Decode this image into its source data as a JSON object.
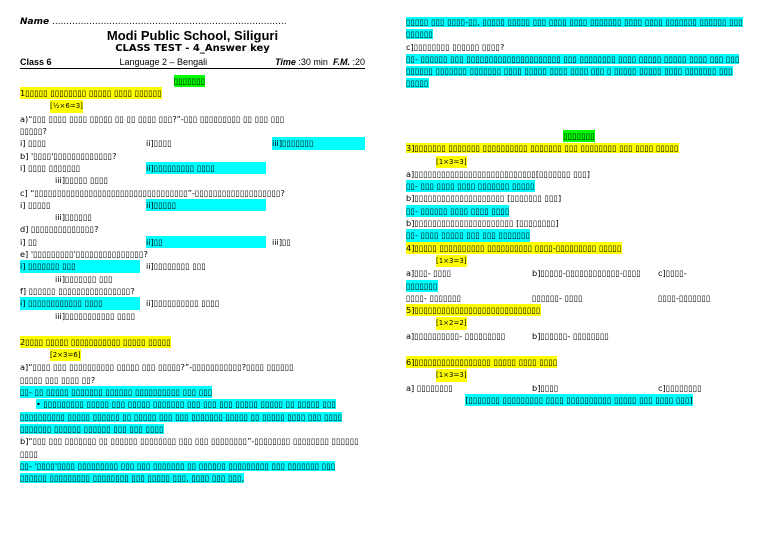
{
  "header": {
    "name_label": "Name",
    "name_dots": "..................................................................................",
    "school": "Modi Public School, Siliguri",
    "test": "CLASS TEST - 4_Answer key",
    "class": "Class 6",
    "subject": "Language 2 – Bengali",
    "time_label": "Time",
    "time": ":30 min",
    "fm_label": "F.M.",
    "fm": ":20"
  },
  "left": [
    [
      {
        "text": "▯▯▯▯▯▯▯",
        "bg": "#00ff00",
        "center": true
      }
    ],
    [
      {
        "text": "1▯▯▯▯▯ ▯▯▯▯▯▯▯▯ ▯▯▯▯▯ ▯▯▯▯ ▯▯▯▯▯▯",
        "bg": "#ffff00"
      }
    ],
    [
      {
        "text": "[½×6=3]",
        "bg": "#ffff00",
        "small": true
      }
    ],
    [
      {
        "text": "a)“▯▯▯ ▯▯▯▯ ▯▯▯▯ ▯▯▯▯▯ ▯▯ ▯▯ ▯▯▯▯ ▯▯▯?”-▯▯▯ ▯▯▯▯▯▯▯▯▯ ▯▯ ▯▯▯ ▯▯▯"
      }
    ],
    [
      {
        "text": "▯▯▯▯▯?"
      }
    ],
    [
      {
        "text": "i] ▯▯▯▯"
      },
      {
        "text": "ii]▯▯▯▯"
      },
      {
        "text": "iii]▯▯▯▯▯▯▯",
        "bg": "#00ffff"
      }
    ],
    [
      {
        "text": "b] '▯▯▯▯'▯▯▯▯▯▯▯▯▯▯▯▯▯?"
      }
    ],
    [
      {
        "text": "i] ▯▯▯▯ ▯▯▯▯▯▯▯"
      },
      {
        "text": "ii]▯▯▯▯▯▯▯▯▯ ▯▯▯▯",
        "bg": "#00ffff"
      }
    ],
    [
      {
        "text": "iii]▯▯▯▯▯ ▯▯▯▯",
        "indent": true
      }
    ],
    [
      {
        "text": "c] “▯▯▯▯▯▯▯▯▯▯▯▯▯▯▯▯▯▯▯▯▯▯▯▯▯▯▯▯▯▯▯▯▯▯”-▯▯▯▯▯▯▯▯▯▯▯▯▯▯▯▯▯▯▯?"
      }
    ],
    [
      {
        "text": "i] ▯▯▯▯▯"
      },
      {
        "text": "ii]▯▯▯▯▯",
        "bg": "#00ffff"
      }
    ],
    [
      {
        "text": "iii]▯▯▯▯▯▯",
        "indent": true
      }
    ],
    [
      {
        "text": "d] ▯▯▯▯▯▯▯▯▯▯▯▯▯▯?"
      }
    ],
    [
      {
        "text": "i] ▯▯"
      },
      {
        "text": "ii]▯▯",
        "bg": "#00ffff"
      },
      {
        "text": "iii]▯▯"
      }
    ],
    [
      {
        "text": "e] '▯▯▯▯▯▯▯▯▯'▯▯▯▯▯▯▯▯▯▯▯▯▯▯▯?"
      }
    ],
    [
      {
        "text": "i] ▯▯▯▯▯▯▯ ▯▯▯",
        "bg": "#00ffff"
      },
      {
        "text": "ii]▯▯▯▯▯▯▯▯ ▯▯▯"
      }
    ],
    [
      {
        "text": "iii]▯▯▯▯▯▯▯ ▯▯▯",
        "indent": true
      }
    ],
    [
      {
        "text": "f] ▯▯▯▯▯▯ ▯▯▯▯▯▯▯▯▯▯▯▯▯▯▯▯?"
      }
    ],
    [
      {
        "text": "i] ▯▯▯▯▯▯▯▯▯▯▯▯ ▯▯▯▯",
        "bg": "#00ffff"
      },
      {
        "text": "ii]▯▯▯▯▯▯▯▯▯▯ ▯▯▯▯"
      }
    ],
    [
      {
        "text": "iii]▯▯▯▯▯▯▯▯▯▯▯ ▯▯▯▯",
        "indent": true
      }
    ],
    [
      {
        "text": "2▯▯▯▯ ▯▯▯▯▯ ▯▯▯▯▯▯▯▯▯▯▯ ▯▯▯▯▯ ▯▯▯▯▯",
        "bg": "#ffff00",
        "gap": true
      }
    ],
    [
      {
        "text": "[2×3=6]",
        "bg": "#ffff00",
        "small": true
      }
    ],
    [
      {
        "text": "a]“▯▯▯▯ ▯▯▯ ▯▯▯▯▯▯▯▯▯▯ ▯▯▯▯▯ ▯▯▯ ▯▯▯▯▯?”-▯▯▯▯▯▯▯▯▯▯▯?▯▯▯▯ ▯▯▯▯▯▯"
      }
    ],
    [
      {
        "text": "▯▯▯▯▯ ▯▯▯ ▯▯▯▯ ▯▯?"
      }
    ],
    [
      {
        "text": "▯▯- ▯▯ ▯▯▯▯▯ ▯▯▯▯▯▯▯ ▯▯▯▯▯▯ ▯▯▯▯▯▯▯▯▯▯ ▯▯▯ ▯▯▯",
        "bg": "#00ffff"
      }
    ],
    [
      {
        "text": "• ▯▯▯▯▯▯▯▯▯ ▯▯▯▯▯ ▯▯▯ ▯▯▯▯▯ ▯▯▯▯▯▯▯ ▯▯▯ ▯▯▯ ▯▯▯ ▯▯▯▯▯ ▯▯▯▯▯ ▯▯ ▯▯▯▯▯ ▯▯▯ ▯▯▯▯▯▯▯▯▯▯ ▯▯▯▯▯ ▯▯▯▯▯▯ ▯▯ ▯▯▯▯▯ ▯▯▯ ▯▯▯ ▯▯▯▯▯▯▯ ▯▯▯▯▯ ▯▯ ▯▯▯▯▯ ▯▯▯▯ ▯▯▯ ▯▯▯▯ ▯▯▯▯▯▯▯ ▯▯▯▯▯▯ ▯▯▯▯▯▯ ▯▯▯ ▯▯▯ ▯▯▯▯",
        "bg": "#00ffff",
        "bullet": true
      }
    ],
    [
      {
        "text": "b]“▯▯▯ ▯▯▯ ▯▯▯▯▯▯▯ ▯▯ ▯▯▯▯▯▯ ▯▯▯▯▯▯▯▯ ▯▯▯ ▯▯▯ ▯▯▯▯▯▯▯▯”-▯▯▯▯▯▯▯▯ ▯▯▯▯▯▯▯▯ ▯▯▯▯▯▯ ▯▯▯▯"
      }
    ],
    [
      {
        "text": "▯▯- '▯▯▯▯'▯▯▯▯ ▯▯▯▯▯▯▯▯▯ ▯▯▯ ▯▯▯ ▯▯▯▯▯▯▯ ▯▯ ▯▯▯▯▯▯ ▯▯▯▯▯▯▯▯▯ ▯▯▯ ▯▯▯▯▯▯▯ ▯▯▯ ▯▯▯▯▯▯ ▯▯▯▯▯▯▯▯▯ ▯▯▯▯▯▯▯▯ ▯▯▯ ▯▯▯▯▯ ▯▯▯, ▯▯▯▯ ▯▯▯ ▯▯▯,",
        "bg": "#00ffff"
      }
    ]
  ],
  "right_top": [
    [
      {
        "text": "▯▯▯▯▯ ▯▯▯ ▯▯▯▯-▯▯, ▯▯▯▯▯ ▯▯▯▯▯ ▯▯▯ ▯▯▯▯ ▯▯▯▯ ▯▯▯▯▯▯▯ ▯▯▯▯ ▯▯▯▯ ▯▯▯▯▯▯▯ ▯▯▯▯▯▯ ▯▯▯ ▯▯▯▯▯▯",
        "bg": "#00ffff"
      }
    ],
    [
      {
        "text": "c]▯▯▯▯▯▯▯▯ ▯▯▯▯▯▯ ▯▯▯▯?"
      }
    ],
    [
      {
        "text": "▯▯- ▯▯▯▯▯▯ ▯▯▯ ▯▯▯▯▯▯▯▯▯▯▯▯▯▯▯▯▯▯▯▯▯ ▯▯▯ ▯▯▯▯▯▯▯▯ ▯▯▯▯ ▯▯▯▯▯ ▯▯▯▯▯ ▯▯▯▯ ▯▯▯ ▯▯▯ ▯▯▯▯▯▯ ▯▯▯▯▯▯▯ ▯▯▯▯▯▯▯ ▯▯▯▯ ▯▯▯▯▯ ▯▯▯▯ ▯▯▯▯ ▯▯▯ ▯ ▯▯▯▯▯ ▯▯▯▯▯ ▯▯▯▯ ▯▯▯▯▯▯▯ ▯▯▯ ▯▯▯▯▯",
        "bg": "#00ffff"
      }
    ]
  ],
  "right_bottom": [
    [
      {
        "text": "▯▯▯▯▯▯▯",
        "bg": "#00ff00",
        "center": true
      }
    ],
    [
      {
        "text": "3]▯▯▯▯▯▯▯ ▯▯▯▯▯▯▯ ▯▯▯▯▯▯▯▯▯▯ ▯▯▯▯▯▯▯ ▯▯▯ ▯▯▯▯▯▯▯▯ ▯▯▯ ▯▯▯▯ ▯▯▯▯▯",
        "bg": "#ffff00"
      }
    ],
    [
      {
        "text": "[1×3=3]",
        "bg": "#ffff00",
        "small": true
      }
    ],
    [
      {
        "text": "a]▯▯▯▯▯▯▯▯▯▯▯▯▯▯▯▯▯▯▯▯▯▯▯▯▯▯▯[▯▯▯▯▯▯▯ ▯▯▯]"
      }
    ],
    [
      {
        "text": "▯▯- ▯▯▯ ▯▯▯▯ ▯▯▯▯ ▯▯▯▯▯▯▯ ▯▯▯▯▯",
        "bg": "#00ffff"
      }
    ],
    [
      {
        "text": "b]▯▯▯▯▯▯▯▯▯▯▯▯▯▯▯▯▯▯▯▯ [▯▯▯▯▯▯▯ ▯▯▯]"
      }
    ],
    [
      {
        "text": "▯▯- ▯▯▯▯▯▯ ▯▯▯▯ ▯▯▯▯ ▯▯▯▯",
        "bg": "#00ffff"
      }
    ],
    [
      {
        "text": "b]▯▯▯▯▯▯▯▯▯▯▯▯▯▯▯▯▯▯▯▯▯▯ [▯▯▯▯▯▯▯▯]"
      }
    ],
    [
      {
        "text": "▯▯- ▯▯▯▯ ▯▯▯▯▯ ▯▯▯ ▯▯▯ ▯▯▯▯▯▯▯",
        "bg": "#00ffff"
      }
    ],
    [
      {
        "text": "4]▯▯▯▯▯ ▯▯▯▯▯▯▯▯▯▯ ▯▯▯▯▯▯▯▯▯▯ ▯▯▯▯-▯▯▯▯▯▯▯▯▯ ▯▯▯▯▯",
        "bg": "#ffff00"
      }
    ],
    [
      {
        "text": "[1×3=3]",
        "bg": "#ffff00",
        "small": true
      }
    ],
    [
      {
        "text": "a]▯▯▯- ▯▯▯▯"
      },
      {
        "text": "b]▯▯▯▯▯-▯▯▯▯▯▯▯▯▯▯▯▯-▯▯▯▯"
      },
      {
        "text": "c]▯▯▯▯-"
      }
    ],
    [
      {
        "text": "▯▯▯▯▯▯▯",
        "bg": "#00ffff"
      }
    ],
    [
      {
        "text": "▯▯▯▯- ▯▯▯▯▯▯▯"
      },
      {
        "text": "▯▯▯▯▯▯- ▯▯▯▯"
      },
      {
        "text": "▯▯▯▯-▯▯▯▯▯▯▯"
      }
    ],
    [
      {
        "text": "5]▯▯▯▯▯▯▯▯▯▯▯▯▯▯▯▯▯▯▯▯▯▯▯▯▯▯▯▯",
        "bg": "#ffff00"
      }
    ],
    [
      {
        "text": "[1×2=2]",
        "bg": "#ffff00",
        "small": true
      }
    ],
    [
      {
        "text": "a]▯▯▯▯▯▯▯▯▯▯- ▯▯▯▯▯▯▯▯▯"
      },
      {
        "text": "b]▯▯▯▯▯▯- ▯▯▯▯▯▯▯▯"
      }
    ],
    [
      {
        "text": "6]▯▯▯▯▯▯▯▯▯▯▯▯▯▯▯▯▯ ▯▯▯▯▯ ▯▯▯▯ ▯▯▯▯",
        "bg": "#ffff00",
        "gap": true
      }
    ],
    [
      {
        "text": "[1×3=3]",
        "bg": "#ffff00",
        "small": true
      }
    ],
    [
      {
        "text": "a] ▯▯▯▯▯▯▯▯"
      },
      {
        "text": "b]▯▯▯▯"
      },
      {
        "text": "c]▯▯▯▯▯▯▯▯"
      }
    ],
    [
      {
        "text": "[▯▯▯▯▯▯▯ ▯▯▯▯▯▯▯▯▯ ▯▯▯▯ ▯▯▯▯▯▯▯▯▯▯ ▯▯▯▯▯ ▯▯▯ ▯▯▯▯ ▯▯▯]",
        "bg": "#00ffff",
        "center": true
      }
    ]
  ]
}
